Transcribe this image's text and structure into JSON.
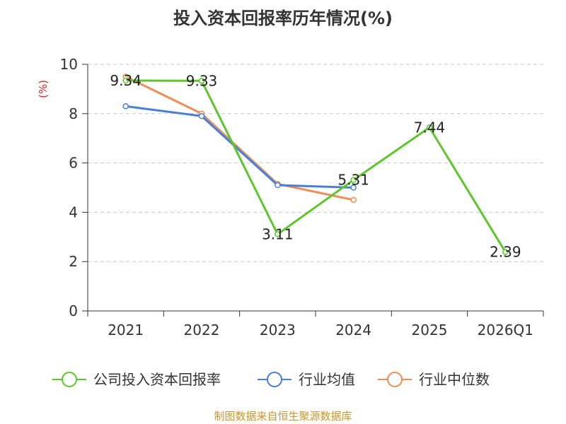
{
  "chart_data": {
    "type": "line",
    "title": "投入资本回报率历年情况(%)",
    "ylabel": "(%)",
    "xlabel": "",
    "categories": [
      "2021",
      "2022",
      "2023",
      "2024",
      "2025",
      "2026Q1"
    ],
    "ylim": [
      0,
      10
    ],
    "yticks": [
      0,
      2,
      4,
      6,
      8,
      10
    ],
    "grid": true,
    "legend_position": "bottom",
    "series": [
      {
        "name": "公司投入资本回报率",
        "color": "#5cc62b",
        "values": [
          9.34,
          9.33,
          3.11,
          5.31,
          7.44,
          2.39
        ],
        "labels": [
          "9.34",
          "9.33",
          "3.11",
          "5.31",
          "7.44",
          "2.39"
        ]
      },
      {
        "name": "行业均值",
        "color": "#4a7fd6",
        "values": [
          8.3,
          7.9,
          5.1,
          5.0,
          null,
          null
        ]
      },
      {
        "name": "行业中位数",
        "color": "#f08c55",
        "values": [
          9.5,
          8.0,
          5.15,
          4.5,
          null,
          null
        ]
      }
    ]
  },
  "source_note": "制图数据来自恒生聚源数据库"
}
